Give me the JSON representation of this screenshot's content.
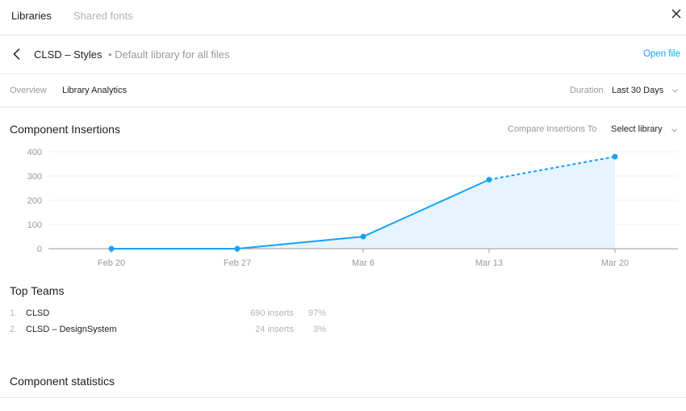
{
  "tabs": {
    "libraries": "Libraries",
    "shared_fonts": "Shared fonts"
  },
  "header": {
    "file_name": "CLSD – Styles",
    "file_sub": "• Default library for all files",
    "open_file": "Open file"
  },
  "subnav": {
    "overview": "Overview",
    "analytics": "Library Analytics",
    "duration_label": "Duration",
    "duration_value": "Last 30 Days"
  },
  "insertions": {
    "title": "Component Insertions",
    "compare_label": "Compare Insertions To",
    "compare_value": "Select library"
  },
  "chart_data": {
    "type": "area",
    "categories": [
      "Feb 20",
      "Feb 27",
      "Mar 6",
      "Mar 13",
      "Mar 20"
    ],
    "values": [
      0,
      0,
      50,
      285,
      380
    ],
    "projected_from_index": 3,
    "y_ticks": [
      "0",
      "100",
      "200",
      "300",
      "400"
    ],
    "ylim": [
      0,
      400
    ],
    "grid": true,
    "line_color": "#18a0fb",
    "fill_color": "#e5f4fe"
  },
  "teams": {
    "title": "Top Teams",
    "rows": [
      {
        "rank": "1.",
        "name": "CLSD",
        "inserts": "690 inserts",
        "pct": "97%"
      },
      {
        "rank": "2.",
        "name": "CLSD – DesignSystem",
        "inserts": "24 inserts",
        "pct": "3%"
      }
    ]
  },
  "stats": {
    "title": "Component statistics"
  }
}
